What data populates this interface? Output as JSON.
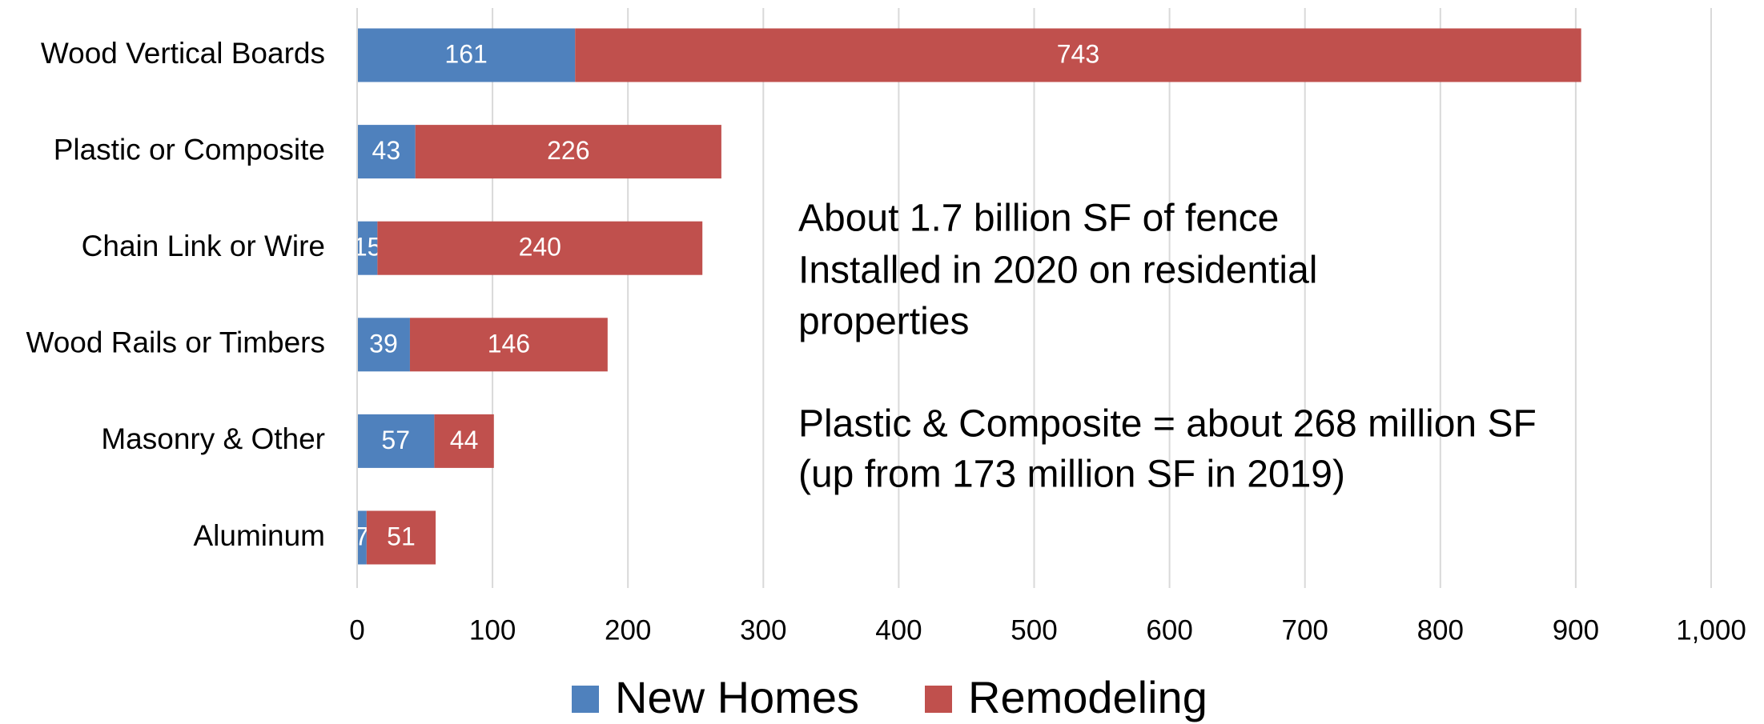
{
  "chart_data": {
    "type": "stacked_bar_horizontal",
    "categories": [
      "Wood Vertical Boards",
      "Plastic or Composite",
      "Chain Link or Wire",
      "Wood Rails or Timbers",
      "Masonry & Other",
      "Aluminum"
    ],
    "series": [
      {
        "name": "New Homes",
        "color": "#4f81bd",
        "values": [
          161,
          43,
          15,
          39,
          57,
          7
        ]
      },
      {
        "name": "Remodeling",
        "color": "#c0504d",
        "values": [
          743,
          226,
          240,
          146,
          44,
          51
        ]
      }
    ],
    "xlim": [
      0,
      1000
    ],
    "xticks": [
      0,
      100,
      200,
      300,
      400,
      500,
      600,
      700,
      800,
      900,
      {
        "value": 1000,
        "label": "1,000"
      }
    ],
    "grid": true,
    "legend": "bottom",
    "annotations": [
      "About 1.7 billion SF of fence",
      "Installed in 2020 on residential",
      "properties",
      "Plastic & Composite = about 268 million SF",
      "(up from 173 million SF in 2019)"
    ]
  }
}
